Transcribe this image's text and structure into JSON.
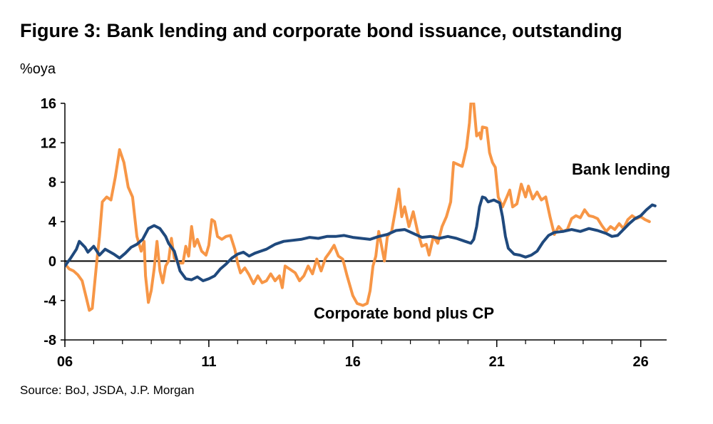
{
  "figure": {
    "title": "Figure 3: Bank lending and corporate bond issuance, outstanding",
    "unit": "%oya",
    "source": "Source: BoJ, JSDA, J.P. Morgan"
  },
  "chart_data": {
    "type": "line",
    "xlim": [
      2006,
      2026.9
    ],
    "ylim": [
      -8,
      16
    ],
    "x_ticks": [
      2006,
      2011,
      2016,
      2021,
      2026
    ],
    "x_tick_labels": [
      "06",
      "11",
      "16",
      "21",
      "26"
    ],
    "y_ticks": [
      -8,
      -4,
      0,
      4,
      8,
      12,
      16
    ],
    "y_tick_labels": [
      "-8",
      "-4",
      "0",
      "4",
      "8",
      "12",
      "16"
    ],
    "grid": false,
    "zero_line": true,
    "series": [
      {
        "name": "Bank lending",
        "color": "#1F497D",
        "points": [
          [
            2006.0,
            -0.5
          ],
          [
            2006.2,
            0.3
          ],
          [
            2006.4,
            1.2
          ],
          [
            2006.5,
            2.0
          ],
          [
            2006.7,
            1.4
          ],
          [
            2006.8,
            0.9
          ],
          [
            2007.0,
            1.5
          ],
          [
            2007.2,
            0.6
          ],
          [
            2007.4,
            1.2
          ],
          [
            2007.7,
            0.7
          ],
          [
            2007.9,
            0.3
          ],
          [
            2008.1,
            0.8
          ],
          [
            2008.3,
            1.4
          ],
          [
            2008.5,
            1.7
          ],
          [
            2008.7,
            2.2
          ],
          [
            2008.9,
            3.3
          ],
          [
            2009.1,
            3.6
          ],
          [
            2009.3,
            3.3
          ],
          [
            2009.5,
            2.5
          ],
          [
            2009.6,
            1.8
          ],
          [
            2009.8,
            1.0
          ],
          [
            2009.9,
            0.0
          ],
          [
            2010.0,
            -1.0
          ],
          [
            2010.2,
            -1.8
          ],
          [
            2010.4,
            -1.9
          ],
          [
            2010.6,
            -1.6
          ],
          [
            2010.8,
            -2.0
          ],
          [
            2011.0,
            -1.8
          ],
          [
            2011.2,
            -1.5
          ],
          [
            2011.4,
            -0.8
          ],
          [
            2011.6,
            -0.3
          ],
          [
            2011.8,
            0.3
          ],
          [
            2012.0,
            0.7
          ],
          [
            2012.2,
            0.9
          ],
          [
            2012.4,
            0.5
          ],
          [
            2012.6,
            0.8
          ],
          [
            2012.8,
            1.0
          ],
          [
            2013.0,
            1.2
          ],
          [
            2013.3,
            1.7
          ],
          [
            2013.6,
            2.0
          ],
          [
            2013.9,
            2.1
          ],
          [
            2014.2,
            2.2
          ],
          [
            2014.5,
            2.4
          ],
          [
            2014.8,
            2.3
          ],
          [
            2015.1,
            2.5
          ],
          [
            2015.4,
            2.5
          ],
          [
            2015.7,
            2.6
          ],
          [
            2016.0,
            2.4
          ],
          [
            2016.3,
            2.3
          ],
          [
            2016.6,
            2.2
          ],
          [
            2016.9,
            2.5
          ],
          [
            2017.2,
            2.7
          ],
          [
            2017.5,
            3.1
          ],
          [
            2017.8,
            3.2
          ],
          [
            2018.1,
            2.8
          ],
          [
            2018.4,
            2.4
          ],
          [
            2018.7,
            2.5
          ],
          [
            2019.0,
            2.3
          ],
          [
            2019.3,
            2.5
          ],
          [
            2019.6,
            2.3
          ],
          [
            2019.9,
            2.0
          ],
          [
            2020.1,
            1.8
          ],
          [
            2020.2,
            2.2
          ],
          [
            2020.3,
            3.5
          ],
          [
            2020.4,
            5.5
          ],
          [
            2020.5,
            6.5
          ],
          [
            2020.6,
            6.4
          ],
          [
            2020.7,
            6.0
          ],
          [
            2020.9,
            6.2
          ],
          [
            2021.1,
            5.9
          ],
          [
            2021.2,
            4.5
          ],
          [
            2021.3,
            2.5
          ],
          [
            2021.4,
            1.3
          ],
          [
            2021.6,
            0.7
          ],
          [
            2021.8,
            0.6
          ],
          [
            2022.0,
            0.4
          ],
          [
            2022.2,
            0.6
          ],
          [
            2022.4,
            1.0
          ],
          [
            2022.6,
            1.9
          ],
          [
            2022.8,
            2.6
          ],
          [
            2023.0,
            2.9
          ],
          [
            2023.3,
            3.0
          ],
          [
            2023.6,
            3.2
          ],
          [
            2023.9,
            3.0
          ],
          [
            2024.2,
            3.3
          ],
          [
            2024.5,
            3.1
          ],
          [
            2024.8,
            2.8
          ],
          [
            2025.0,
            2.5
          ],
          [
            2025.2,
            2.6
          ],
          [
            2025.4,
            3.2
          ],
          [
            2025.6,
            3.8
          ],
          [
            2025.8,
            4.3
          ],
          [
            2026.0,
            4.6
          ],
          [
            2026.2,
            5.2
          ],
          [
            2026.4,
            5.7
          ],
          [
            2026.5,
            5.6
          ]
        ]
      },
      {
        "name": "Corporate bond plus CP",
        "color": "#F79646",
        "points": [
          [
            2006.0,
            -0.3
          ],
          [
            2006.15,
            -0.8
          ],
          [
            2006.3,
            -1.0
          ],
          [
            2006.45,
            -1.4
          ],
          [
            2006.6,
            -2.0
          ],
          [
            2006.75,
            -3.8
          ],
          [
            2006.85,
            -5.0
          ],
          [
            2006.95,
            -4.8
          ],
          [
            2007.1,
            -0.3
          ],
          [
            2007.2,
            2.5
          ],
          [
            2007.3,
            6.0
          ],
          [
            2007.45,
            6.5
          ],
          [
            2007.6,
            6.2
          ],
          [
            2007.75,
            8.5
          ],
          [
            2007.9,
            11.3
          ],
          [
            2008.05,
            10.0
          ],
          [
            2008.2,
            7.5
          ],
          [
            2008.35,
            6.5
          ],
          [
            2008.5,
            2.5
          ],
          [
            2008.65,
            1.0
          ],
          [
            2008.75,
            2.0
          ],
          [
            2008.8,
            -1.5
          ],
          [
            2008.9,
            -4.2
          ],
          [
            2009.0,
            -3.0
          ],
          [
            2009.1,
            -0.8
          ],
          [
            2009.2,
            2.0
          ],
          [
            2009.3,
            -1.0
          ],
          [
            2009.4,
            -2.2
          ],
          [
            2009.5,
            -0.5
          ],
          [
            2009.6,
            0.0
          ],
          [
            2009.7,
            2.3
          ],
          [
            2009.8,
            0.3
          ],
          [
            2009.95,
            -0.2
          ],
          [
            2010.1,
            -0.2
          ],
          [
            2010.2,
            1.5
          ],
          [
            2010.3,
            0.5
          ],
          [
            2010.4,
            3.5
          ],
          [
            2010.5,
            1.5
          ],
          [
            2010.6,
            2.2
          ],
          [
            2010.75,
            1.0
          ],
          [
            2010.9,
            0.6
          ],
          [
            2011.0,
            1.6
          ],
          [
            2011.1,
            4.2
          ],
          [
            2011.2,
            4.0
          ],
          [
            2011.3,
            2.5
          ],
          [
            2011.45,
            2.2
          ],
          [
            2011.6,
            2.5
          ],
          [
            2011.75,
            2.6
          ],
          [
            2011.9,
            1.2
          ],
          [
            2012.0,
            -0.2
          ],
          [
            2012.1,
            -1.2
          ],
          [
            2012.25,
            -0.7
          ],
          [
            2012.4,
            -1.4
          ],
          [
            2012.55,
            -2.3
          ],
          [
            2012.7,
            -1.5
          ],
          [
            2012.85,
            -2.2
          ],
          [
            2013.0,
            -2.0
          ],
          [
            2013.15,
            -1.3
          ],
          [
            2013.3,
            -2.0
          ],
          [
            2013.45,
            -1.5
          ],
          [
            2013.55,
            -2.7
          ],
          [
            2013.65,
            -0.5
          ],
          [
            2013.8,
            -0.8
          ],
          [
            2014.0,
            -1.2
          ],
          [
            2014.15,
            -2.0
          ],
          [
            2014.3,
            -1.5
          ],
          [
            2014.45,
            -0.5
          ],
          [
            2014.6,
            -1.3
          ],
          [
            2014.75,
            0.2
          ],
          [
            2014.9,
            -1.0
          ],
          [
            2015.05,
            0.3
          ],
          [
            2015.2,
            0.9
          ],
          [
            2015.35,
            1.6
          ],
          [
            2015.5,
            0.5
          ],
          [
            2015.65,
            0.2
          ],
          [
            2015.8,
            -1.5
          ],
          [
            2016.0,
            -3.5
          ],
          [
            2016.15,
            -4.3
          ],
          [
            2016.35,
            -4.5
          ],
          [
            2016.5,
            -4.3
          ],
          [
            2016.6,
            -3.0
          ],
          [
            2016.7,
            -0.5
          ],
          [
            2016.8,
            0.5
          ],
          [
            2016.9,
            3.0
          ],
          [
            2017.0,
            1.5
          ],
          [
            2017.1,
            0.0
          ],
          [
            2017.2,
            2.5
          ],
          [
            2017.35,
            3.0
          ],
          [
            2017.5,
            5.5
          ],
          [
            2017.6,
            7.3
          ],
          [
            2017.7,
            4.5
          ],
          [
            2017.8,
            5.5
          ],
          [
            2017.95,
            3.5
          ],
          [
            2018.1,
            5.0
          ],
          [
            2018.25,
            3.0
          ],
          [
            2018.4,
            1.5
          ],
          [
            2018.55,
            1.7
          ],
          [
            2018.65,
            0.6
          ],
          [
            2018.8,
            2.5
          ],
          [
            2018.95,
            1.8
          ],
          [
            2019.1,
            3.5
          ],
          [
            2019.25,
            4.5
          ],
          [
            2019.4,
            6.0
          ],
          [
            2019.5,
            10.0
          ],
          [
            2019.65,
            9.8
          ],
          [
            2019.8,
            9.6
          ],
          [
            2019.95,
            11.5
          ],
          [
            2020.05,
            14.0
          ],
          [
            2020.1,
            16.0
          ],
          [
            2020.15,
            16.3
          ],
          [
            2020.2,
            16.0
          ],
          [
            2020.3,
            12.7
          ],
          [
            2020.4,
            13.0
          ],
          [
            2020.45,
            12.4
          ],
          [
            2020.5,
            13.6
          ],
          [
            2020.65,
            13.5
          ],
          [
            2020.75,
            11.0
          ],
          [
            2020.85,
            10.0
          ],
          [
            2020.95,
            9.5
          ],
          [
            2021.05,
            6.5
          ],
          [
            2021.2,
            5.5
          ],
          [
            2021.35,
            6.5
          ],
          [
            2021.45,
            7.2
          ],
          [
            2021.55,
            5.5
          ],
          [
            2021.7,
            5.8
          ],
          [
            2021.85,
            7.8
          ],
          [
            2022.0,
            6.5
          ],
          [
            2022.1,
            7.6
          ],
          [
            2022.25,
            6.3
          ],
          [
            2022.4,
            7.0
          ],
          [
            2022.55,
            6.2
          ],
          [
            2022.7,
            6.5
          ],
          [
            2022.85,
            4.5
          ],
          [
            2023.0,
            2.7
          ],
          [
            2023.15,
            3.5
          ],
          [
            2023.3,
            3.0
          ],
          [
            2023.45,
            3.2
          ],
          [
            2023.6,
            4.3
          ],
          [
            2023.75,
            4.6
          ],
          [
            2023.9,
            4.4
          ],
          [
            2024.05,
            5.2
          ],
          [
            2024.2,
            4.6
          ],
          [
            2024.35,
            4.5
          ],
          [
            2024.5,
            4.3
          ],
          [
            2024.65,
            3.6
          ],
          [
            2024.8,
            3.0
          ],
          [
            2024.95,
            3.5
          ],
          [
            2025.1,
            3.2
          ],
          [
            2025.25,
            3.8
          ],
          [
            2025.4,
            3.3
          ],
          [
            2025.55,
            4.2
          ],
          [
            2025.7,
            4.6
          ],
          [
            2025.85,
            4.3
          ],
          [
            2026.0,
            4.5
          ],
          [
            2026.15,
            4.2
          ],
          [
            2026.3,
            4.0
          ]
        ]
      }
    ],
    "annotations": [
      {
        "text": "Bank lending",
        "series": 0
      },
      {
        "text": "Corporate bond plus CP",
        "series": 1
      }
    ]
  }
}
